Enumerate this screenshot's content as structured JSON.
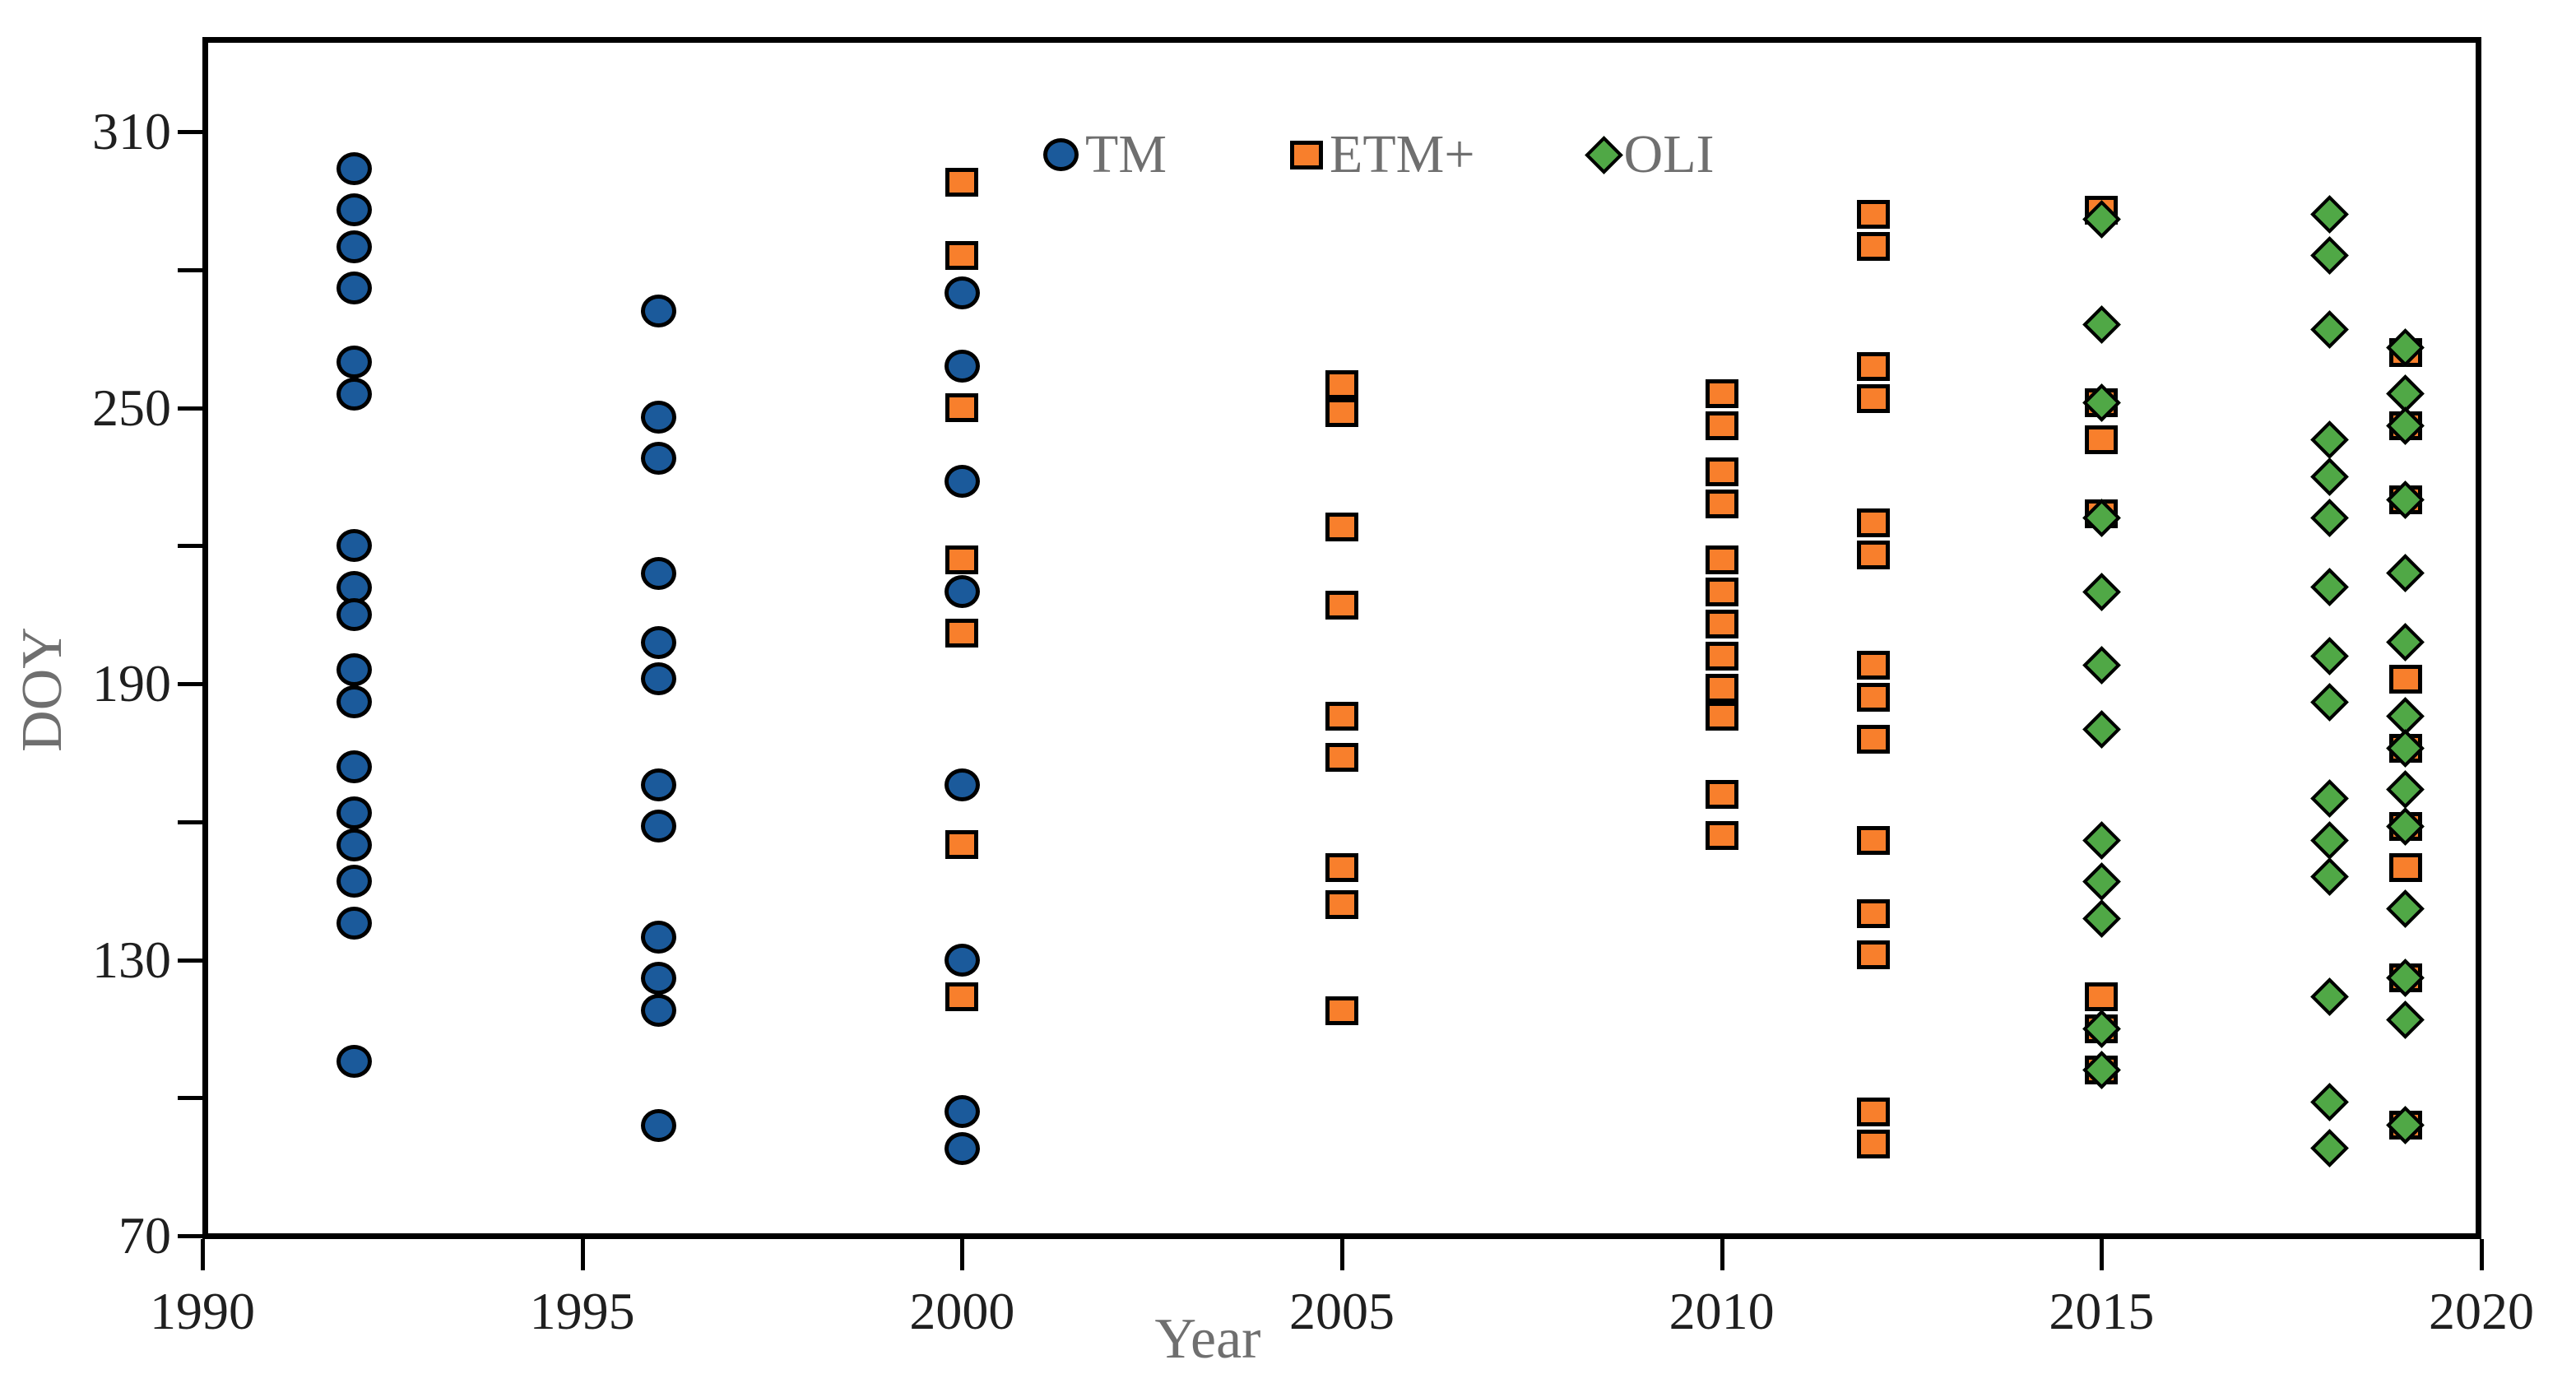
{
  "chart_data": {
    "type": "scatter",
    "title": "",
    "xlabel": "Year",
    "ylabel": "DOY",
    "xlim": [
      1990,
      2020
    ],
    "ylim": [
      70,
      310
    ],
    "x_ticks": [
      1990,
      1995,
      2000,
      2005,
      2010,
      2015,
      2020
    ],
    "y_ticks_labeled": [
      310,
      250,
      190,
      130,
      70
    ],
    "y_ticks_minor": [
      280,
      220,
      160,
      100
    ],
    "grid": false,
    "legend_position": "inside-top-center",
    "series": [
      {
        "name": "TM",
        "marker": "circle",
        "fill": "#1b5a9b",
        "edge": "#000000",
        "groups": [
          {
            "year": 1992,
            "doys": [
              302,
              293,
              285,
              276,
              260,
              253,
              220,
              211,
              205,
              193,
              186,
              172,
              162,
              155,
              147,
              138,
              108
            ]
          },
          {
            "year": 1996,
            "doys": [
              271,
              248,
              239,
              214,
              199,
              191,
              168,
              159,
              135,
              126,
              119,
              94
            ]
          },
          {
            "year": 2000,
            "doys": [
              275,
              259,
              234,
              210,
              168,
              130,
              97,
              89
            ]
          }
        ]
      },
      {
        "name": "ETM+",
        "marker": "square",
        "fill": "#f87f2c",
        "edge": "#000000",
        "groups": [
          {
            "year": 2000,
            "doys": [
              299,
              283,
              250,
              217,
              201,
              155,
              122
            ]
          },
          {
            "year": 2005,
            "doys": [
              255,
              249,
              224,
              207,
              183,
              174,
              150,
              142,
              119
            ]
          },
          {
            "year": 2010,
            "doys": [
              253,
              246,
              236,
              229,
              217,
              210,
              203,
              196,
              189,
              183,
              166,
              157
            ]
          },
          {
            "year": 2012,
            "doys": [
              292,
              285,
              259,
              252,
              225,
              218,
              194,
              187,
              178,
              156,
              140,
              131,
              97,
              90
            ]
          },
          {
            "year": 2015,
            "doys": [
              293,
              251,
              243,
              227,
              122,
              115,
              106
            ]
          },
          {
            "year": 2019,
            "doys": [
              262,
              246,
              230,
              191,
              176,
              159,
              150,
              126,
              94
            ]
          }
        ]
      },
      {
        "name": "OLI",
        "marker": "diamond",
        "fill": "#50a846",
        "edge": "#000000",
        "groups": [
          {
            "year": 2015,
            "doys": [
              291,
              268,
              251,
              226,
              210,
              194,
              180,
              156,
              147,
              139,
              115,
              106
            ]
          },
          {
            "year": 2018,
            "doys": [
              292,
              283,
              267,
              243,
              235,
              226,
              211,
              196,
              186,
              165,
              156,
              148,
              122,
              99,
              89
            ]
          },
          {
            "year": 2019,
            "doys": [
              263,
              253,
              246,
              230,
              214,
              199,
              183,
              176,
              167,
              159,
              141,
              126,
              117,
              94
            ]
          }
        ]
      }
    ]
  },
  "legend": {
    "items": [
      {
        "label": "TM",
        "marker": "circle"
      },
      {
        "label": "ETM+",
        "marker": "square"
      },
      {
        "label": "OLI",
        "marker": "diamond"
      }
    ]
  },
  "axis": {
    "x_title": "Year",
    "y_title": "DOY"
  },
  "colors": {
    "tm_fill": "#1b5a9b",
    "etm_fill": "#f87f2c",
    "oli_fill": "#50a846",
    "marker_edge": "#000000",
    "tick_label": "#1f1f1f",
    "axis_title": "#6f6f6f",
    "frame": "#000000",
    "background": "#ffffff"
  }
}
